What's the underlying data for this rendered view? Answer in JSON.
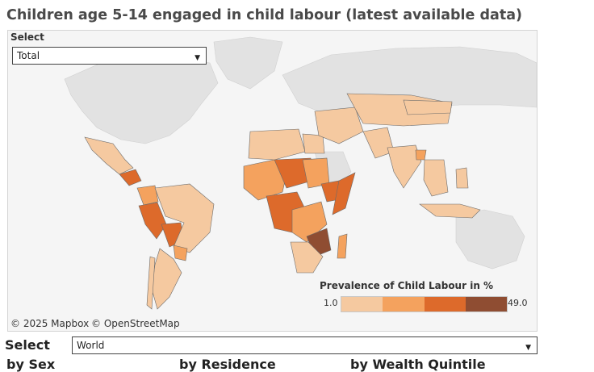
{
  "title": "Children age 5-14 engaged in child labour (latest available data)",
  "filter": {
    "label": "Select",
    "value": "Total"
  },
  "legend": {
    "title": "Prevalence of Child Labour in %",
    "min": "1.0",
    "max": "49.0",
    "colors": [
      "#f5c9a0",
      "#f4a25e",
      "#dd6a2b",
      "#8f4d32"
    ]
  },
  "attribution": {
    "mapbox": "© 2025 Mapbox",
    "osm": "© OpenStreetMap"
  },
  "colors": {
    "no_data_land": "#e3e3e3",
    "water": "#f5f5f5",
    "border": "#6b6b6b"
  },
  "region_filter": {
    "label": "Select",
    "value": "World"
  },
  "breakdowns": [
    "by Sex",
    "by Residence",
    "by Wealth Quintile"
  ]
}
